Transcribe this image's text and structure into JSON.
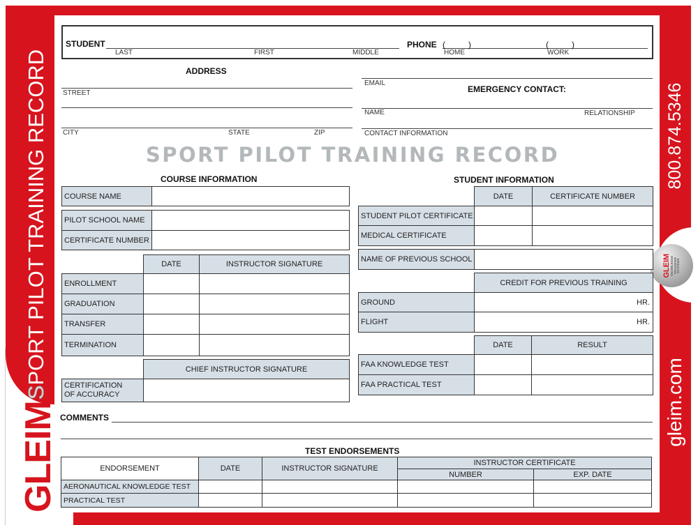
{
  "side": {
    "brand": "GLEIM",
    "title_first_letter": "S",
    "title_rest": "PORT PILOT TRAINING RECORD",
    "phone": "800.874.5346",
    "website": "gleim.com",
    "logo_brand": "GLEIM",
    "logo_text": "KNOWLEDGE TRANSFER SYSTEMS"
  },
  "student": {
    "label": "STUDENT",
    "last": "LAST",
    "first": "FIRST",
    "middle": "MIDDLE",
    "phone_label": "PHONE",
    "home": "HOME",
    "work": "WORK",
    "paren_open": "(",
    "paren_close": ")"
  },
  "address": {
    "title": "ADDRESS",
    "street": "STREET",
    "city": "CITY",
    "state": "STATE",
    "zip": "ZIP",
    "email": "EMAIL",
    "emergency": "EMERGENCY CONTACT:",
    "name": "NAME",
    "relationship": "RELATIONSHIP",
    "contact_info": "CONTACT INFORMATION"
  },
  "title": "SPORT PILOT TRAINING RECORD",
  "course": {
    "title": "COURSE INFORMATION",
    "course_name": "COURSE NAME",
    "pilot_school_name": "PILOT SCHOOL NAME",
    "certificate_number": "CERTIFICATE NUMBER",
    "date": "DATE",
    "instructor_signature": "INSTRUCTOR SIGNATURE",
    "rows": [
      "ENROLLMENT",
      "GRADUATION",
      "TRANSFER",
      "TERMINATION"
    ],
    "chief_signature": "CHIEF INSTRUCTOR SIGNATURE",
    "certification_1": "CERTIFICATION",
    "certification_2": "OF ACCURACY"
  },
  "studentinfo": {
    "title": "STUDENT INFORMATION",
    "date": "DATE",
    "certificate_number": "CERTIFICATE NUMBER",
    "student_pilot_certificate": "STUDENT PILOT CERTIFICATE",
    "medical_certificate": "MEDICAL CERTIFICATE",
    "previous_school": "NAME OF PREVIOUS SCHOOL",
    "credit": "CREDIT FOR PREVIOUS TRAINING",
    "ground": "GROUND",
    "flight": "FLIGHT",
    "hr": "HR.",
    "result": "RESULT",
    "faa_knowledge": "FAA KNOWLEDGE TEST",
    "faa_practical": "FAA PRACTICAL TEST"
  },
  "comments": "COMMENTS",
  "endorsements": {
    "title": "TEST ENDORSEMENTS",
    "endorsement": "ENDORSEMENT",
    "date": "DATE",
    "instructor_signature": "INSTRUCTOR SIGNATURE",
    "instructor_certificate": "INSTRUCTOR CERTIFICATE",
    "number": "NUMBER",
    "exp_date": "EXP. DATE",
    "rows": [
      "AERONAUTICAL KNOWLEDGE TEST",
      "PRACTICAL TEST"
    ]
  },
  "colors": {
    "brand_red": "#d7141e",
    "cell_gray": "#d6dfe6",
    "title_gray": "#b3b8bb"
  }
}
